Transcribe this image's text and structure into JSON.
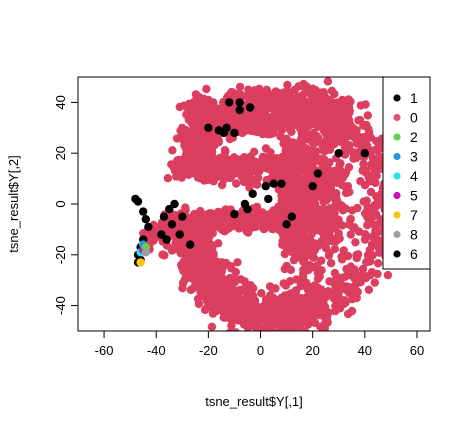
{
  "chart_data": {
    "type": "scatter",
    "title": "",
    "xlabel": "tsne_result$Y[,1]",
    "ylabel": "tsne_result$Y[,2]",
    "xlim": [
      -70,
      65
    ],
    "ylim": [
      -50,
      50
    ],
    "x_ticks": [
      "-60",
      "-40",
      "-20",
      "0",
      "20",
      "40",
      "60"
    ],
    "y_ticks": [
      "-40",
      "-20",
      "0",
      "20",
      "40"
    ],
    "legend_position": "top-right",
    "legend": [
      {
        "label": "1",
        "color": "#000000"
      },
      {
        "label": "0",
        "color": "#DF536B"
      },
      {
        "label": "2",
        "color": "#61D04F"
      },
      {
        "label": "3",
        "color": "#2297E6"
      },
      {
        "label": "4",
        "color": "#28E2E5"
      },
      {
        "label": "5",
        "color": "#CD0BBC"
      },
      {
        "label": "7",
        "color": "#F5C710"
      },
      {
        "label": "8",
        "color": "#9E9E9E"
      },
      {
        "label": "6",
        "color": "#000000"
      }
    ],
    "point_color": "#DB3E5E",
    "black_color": "#000000",
    "clusters": {
      "inner_spiral": [
        [
          -22,
          0
        ],
        [
          -16,
          -3
        ],
        [
          -8,
          -3
        ],
        [
          0,
          -2
        ],
        [
          6,
          1
        ],
        [
          12,
          3
        ],
        [
          15,
          5
        ]
      ],
      "middle_arm": [
        [
          -30,
          -8
        ],
        [
          -25,
          -10
        ],
        [
          -18,
          -10
        ],
        [
          -12,
          -8
        ],
        [
          -6,
          -6
        ],
        [
          0,
          -5
        ],
        [
          6,
          -4
        ],
        [
          12,
          -4
        ],
        [
          18,
          -6
        ],
        [
          22,
          -10
        ],
        [
          24,
          -15
        ],
        [
          22,
          -20
        ]
      ],
      "left_tail": [
        [
          -47,
          -5
        ],
        [
          -45,
          -10
        ],
        [
          -42,
          -15
        ],
        [
          -40,
          -18
        ],
        [
          -38,
          -20
        ]
      ],
      "black_points": [
        [
          -48,
          2
        ],
        [
          -47,
          1
        ],
        [
          -45,
          -3
        ],
        [
          -44,
          -6
        ],
        [
          -43,
          -9
        ],
        [
          -45,
          -14
        ],
        [
          -46,
          -17
        ],
        [
          -47,
          -20
        ],
        [
          -46,
          -22
        ],
        [
          -47,
          -23
        ],
        [
          -37,
          -5
        ],
        [
          -34,
          -8
        ],
        [
          -33,
          0
        ],
        [
          -35,
          -2
        ],
        [
          -30,
          -5
        ],
        [
          -31,
          -12
        ],
        [
          -27,
          -16
        ],
        [
          -10,
          -4
        ],
        [
          -5,
          -2
        ],
        [
          -6,
          0
        ],
        [
          -3,
          4
        ],
        [
          2,
          7
        ],
        [
          5,
          8
        ],
        [
          8,
          8
        ],
        [
          3,
          2
        ],
        [
          -16,
          29
        ],
        [
          -14,
          28
        ],
        [
          -13,
          30
        ],
        [
          -10,
          28
        ],
        [
          -12,
          40
        ],
        [
          -8,
          40
        ],
        [
          -4,
          38
        ],
        [
          -8,
          37
        ],
        [
          -20,
          30
        ],
        [
          10,
          -8
        ],
        [
          12,
          -5
        ],
        [
          20,
          7
        ],
        [
          22,
          12
        ],
        [
          30,
          20
        ],
        [
          40,
          20
        ],
        [
          -38,
          -12
        ],
        [
          -36,
          -14
        ]
      ],
      "colored_points": [
        {
          "x": -46,
          "y": -19,
          "color": "#28E2E5"
        },
        {
          "x": -45,
          "y": -18,
          "color": "#CD0BBC"
        },
        {
          "x": -45,
          "y": -16,
          "color": "#2297E6"
        },
        {
          "x": -44,
          "y": -17,
          "color": "#61D04F"
        },
        {
          "x": -46,
          "y": -23,
          "color": "#F5C710"
        },
        {
          "x": -44,
          "y": -19,
          "color": "#9E9E9E"
        }
      ]
    }
  }
}
